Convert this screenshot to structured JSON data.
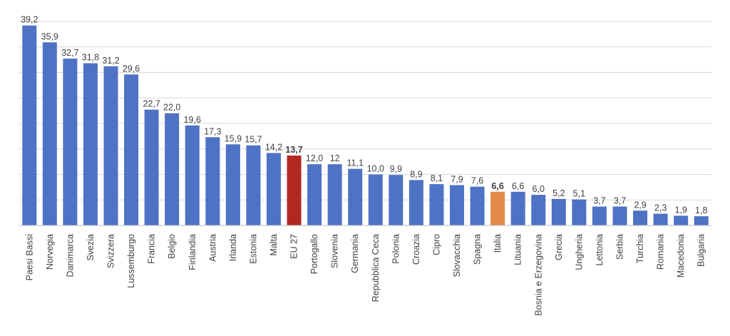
{
  "chart_data": {
    "type": "bar",
    "title": "",
    "xlabel": "",
    "ylabel": "",
    "ylim": [
      0,
      40
    ],
    "grid": true,
    "legend": "none",
    "colors": {
      "default": "#4e72c4",
      "eu": "#b2281f",
      "highlight": "#e38a4b"
    },
    "categories": [
      "Paesi Bassi",
      "Norvegia",
      "Danimarca",
      "Svezia",
      "Svizzera",
      "Lussemburgo",
      "Francia",
      "Belgio",
      "Finlandia",
      "Austria",
      "Irlanda",
      "Estonia",
      "Malta",
      "EU 27",
      "Portogallo",
      "Slovenia",
      "Germania",
      "Repubblica Ceca",
      "Polonia",
      "Croazia",
      "Cipro",
      "Slovacchia",
      "Spagna",
      "Italia",
      "Lituania",
      "Bosnia e Erzegovina",
      "Grecia",
      "Ungheria",
      "Lettonia",
      "Serbia",
      "Turchia",
      "Romania",
      "Macedonia",
      "Bulgaria"
    ],
    "values": [
      39.2,
      35.9,
      32.7,
      31.8,
      31.2,
      29.6,
      22.7,
      22.0,
      19.6,
      17.3,
      15.9,
      15.7,
      14.2,
      13.7,
      12.0,
      12,
      11.1,
      10.0,
      9.9,
      8.9,
      8.1,
      7.9,
      7.6,
      6.6,
      6.6,
      6.0,
      5.2,
      5.1,
      3.7,
      3.7,
      2.9,
      2.3,
      1.9,
      1.8
    ],
    "labels": [
      "39,2",
      "35,9",
      "32,7",
      "31,8",
      "31,2",
      "29,6",
      "22,7",
      "22,0",
      "19,6",
      "17,3",
      "15,9",
      "15,7",
      "14,2",
      "13,7",
      "12,0",
      "12",
      "11,1",
      "10,0",
      "9,9",
      "8,9",
      "8,1",
      "7,9",
      "7,6",
      "6,6",
      "6,6",
      "6,0",
      "5,2",
      "5,1",
      "3,7",
      "3,7",
      "2,9",
      "2,3",
      "1,9",
      "1,8"
    ],
    "bar_colors": [
      "default",
      "default",
      "default",
      "default",
      "default",
      "default",
      "default",
      "default",
      "default",
      "default",
      "default",
      "default",
      "default",
      "eu",
      "default",
      "default",
      "default",
      "default",
      "default",
      "default",
      "default",
      "default",
      "default",
      "highlight",
      "default",
      "default",
      "default",
      "default",
      "default",
      "default",
      "default",
      "default",
      "default",
      "default"
    ],
    "bold_labels": [
      "EU 27",
      "Italia"
    ]
  }
}
